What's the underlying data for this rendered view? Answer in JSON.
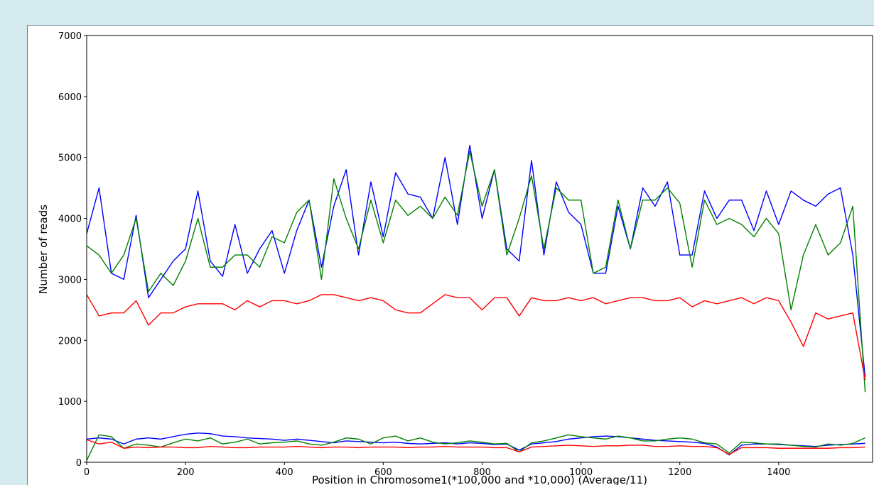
{
  "chart_data": {
    "type": "line",
    "x_label": "Position in Chromosome1(*100,000 and *10,000) (Average/11)",
    "y_label": "Number of reads",
    "x": [
      0,
      25,
      50,
      75,
      100,
      125,
      150,
      175,
      200,
      225,
      250,
      275,
      300,
      325,
      350,
      375,
      400,
      425,
      450,
      475,
      500,
      525,
      550,
      575,
      600,
      625,
      650,
      675,
      700,
      725,
      750,
      775,
      800,
      825,
      850,
      875,
      900,
      925,
      950,
      975,
      1000,
      1025,
      1050,
      1075,
      1100,
      1125,
      1150,
      1175,
      1200,
      1225,
      1250,
      1275,
      1300,
      1325,
      1350,
      1375,
      1400,
      1425,
      1450,
      1475,
      1500,
      1525,
      1550,
      1575
    ],
    "series": [
      {
        "color": "#0000ff",
        "values": [
          3750,
          4500,
          3100,
          3000,
          4050,
          2700,
          3000,
          3300,
          3500,
          4450,
          3300,
          3050,
          3900,
          3100,
          3500,
          3800,
          3100,
          3800,
          4300,
          3200,
          4200,
          4800,
          3400,
          4600,
          3700,
          4750,
          4400,
          4350,
          4000,
          5000,
          3900,
          5200,
          4000,
          4800,
          3500,
          3300,
          4950,
          3400,
          4600,
          4100,
          3900,
          3100,
          3100,
          4200,
          3500,
          4500,
          4200,
          4600,
          3400,
          3400,
          4450,
          4000,
          4300,
          4300,
          3800,
          4450,
          3900,
          4450,
          4300,
          4200,
          4400,
          4500,
          3400,
          1400
        ]
      },
      {
        "color": "#008000",
        "values": [
          3550,
          3400,
          3100,
          3400,
          4000,
          2800,
          3100,
          2900,
          3300,
          4000,
          3200,
          3200,
          3400,
          3400,
          3200,
          3700,
          3600,
          4100,
          4300,
          3000,
          4650,
          4000,
          3500,
          4300,
          3600,
          4300,
          4050,
          4200,
          4000,
          4350,
          4050,
          5100,
          4200,
          4800,
          3400,
          4000,
          4700,
          3500,
          4500,
          4300,
          4300,
          3100,
          3200,
          4300,
          3500,
          4300,
          4300,
          4500,
          4250,
          3200,
          4300,
          3900,
          4000,
          3900,
          3700,
          4000,
          3750,
          2500,
          3400,
          3900,
          3400,
          3600,
          4200,
          1150
        ]
      },
      {
        "color": "#ff0000",
        "values": [
          2750,
          2400,
          2450,
          2450,
          2650,
          2250,
          2450,
          2450,
          2550,
          2600,
          2600,
          2600,
          2500,
          2650,
          2550,
          2650,
          2650,
          2600,
          2650,
          2750,
          2750,
          2700,
          2650,
          2700,
          2650,
          2500,
          2450,
          2450,
          2600,
          2750,
          2700,
          2700,
          2500,
          2700,
          2700,
          2400,
          2700,
          2650,
          2650,
          2700,
          2650,
          2700,
          2600,
          2650,
          2700,
          2700,
          2650,
          2650,
          2700,
          2550,
          2650,
          2600,
          2650,
          2700,
          2600,
          2700,
          2650,
          2300,
          1900,
          2450,
          2350,
          2400,
          2450,
          1350
        ]
      },
      {
        "color": "#0000ff",
        "values": [
          380,
          400,
          380,
          300,
          380,
          400,
          380,
          420,
          460,
          480,
          470,
          430,
          420,
          400,
          390,
          380,
          360,
          380,
          360,
          340,
          320,
          350,
          340,
          330,
          320,
          330,
          310,
          300,
          310,
          320,
          300,
          320,
          310,
          290,
          300,
          200,
          300,
          320,
          340,
          380,
          400,
          420,
          430,
          420,
          400,
          380,
          360,
          350,
          340,
          330,
          310,
          250,
          120,
          280,
          300,
          300,
          290,
          280,
          270,
          260,
          280,
          290,
          300,
          310
        ]
      },
      {
        "color": "#008000",
        "values": [
          30,
          450,
          420,
          230,
          300,
          280,
          250,
          320,
          380,
          350,
          400,
          300,
          330,
          380,
          300,
          320,
          330,
          350,
          300,
          280,
          330,
          400,
          380,
          300,
          400,
          430,
          350,
          400,
          330,
          300,
          320,
          350,
          330,
          300,
          310,
          170,
          320,
          350,
          400,
          450,
          420,
          400,
          380,
          430,
          400,
          350,
          350,
          380,
          400,
          380,
          320,
          300,
          150,
          330,
          320,
          300,
          300,
          280,
          260,
          250,
          300,
          280,
          310,
          400
        ]
      },
      {
        "color": "#ff0000",
        "values": [
          370,
          300,
          330,
          230,
          250,
          240,
          250,
          250,
          240,
          240,
          260,
          250,
          240,
          240,
          250,
          250,
          250,
          260,
          250,
          240,
          250,
          250,
          240,
          250,
          250,
          250,
          240,
          250,
          250,
          260,
          250,
          250,
          250,
          240,
          240,
          170,
          250,
          260,
          270,
          280,
          270,
          260,
          270,
          270,
          280,
          280,
          260,
          260,
          270,
          260,
          260,
          240,
          130,
          240,
          240,
          240,
          230,
          230,
          230,
          230,
          230,
          240,
          240,
          250
        ]
      }
    ],
    "xlim": [
      0,
      1590
    ],
    "xticks": [
      0,
      200,
      400,
      600,
      800,
      1000,
      1200,
      1400
    ],
    "ylim": [
      0,
      7000
    ],
    "yticks": [
      0,
      1000,
      2000,
      3000,
      4000,
      5000,
      6000,
      7000
    ],
    "grid": false
  }
}
